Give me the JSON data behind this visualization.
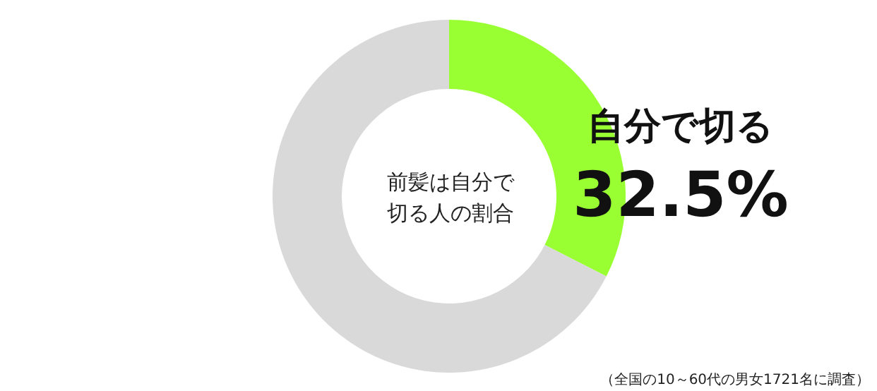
{
  "chart_data": {
    "type": "donut",
    "title": "前髪は自分で切る人の割合",
    "categories": [
      "自分で切る",
      null
    ],
    "values": [
      32.5,
      67.5
    ],
    "colors": [
      "#99ff33",
      "#d9d9d9"
    ],
    "value_labels": [
      "32.5%",
      null
    ],
    "annotations": [
      "（全国の10～60代の男女1721名に調査）"
    ]
  }
}
